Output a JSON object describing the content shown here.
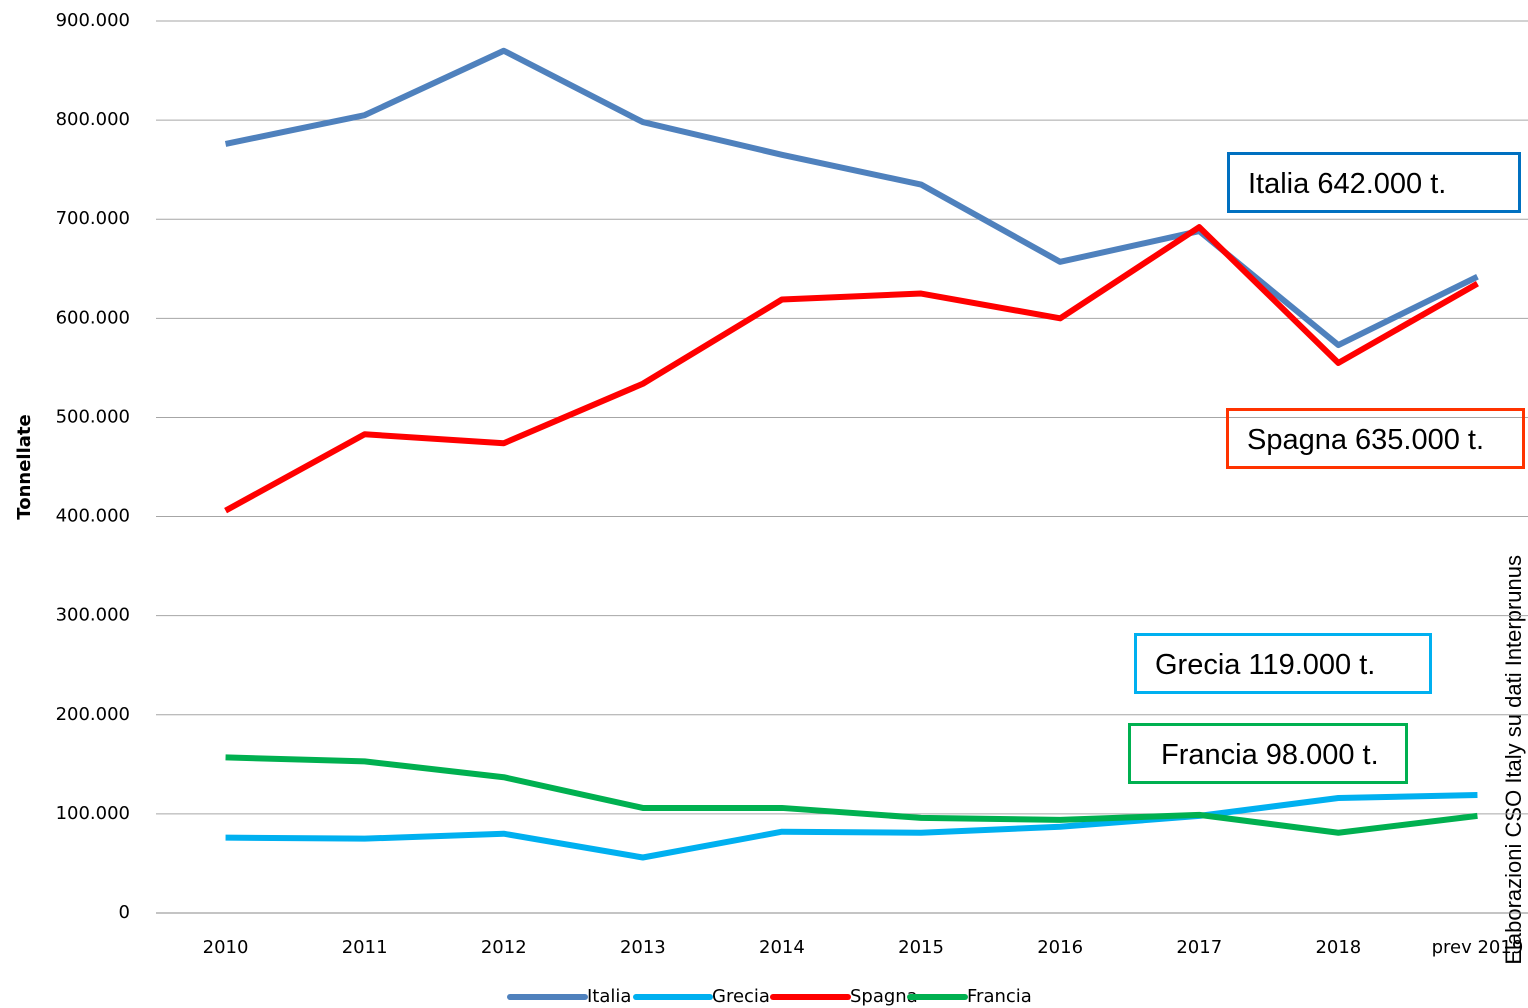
{
  "chart_data": {
    "type": "line",
    "y_label": "Tonnellate",
    "categories": [
      "2010",
      "2011",
      "2012",
      "2013",
      "2014",
      "2015",
      "2016",
      "2017",
      "2018",
      "prev 2019"
    ],
    "series": [
      {
        "name": "Italia",
        "color": "#4f81bd",
        "values": [
          776000,
          805000,
          870000,
          798000,
          765000,
          735000,
          657000,
          688000,
          573000,
          642000
        ]
      },
      {
        "name": "Grecia",
        "color": "#00b0f0",
        "values": [
          76000,
          75000,
          80000,
          56000,
          82000,
          81000,
          87000,
          98000,
          116000,
          119000
        ]
      },
      {
        "name": "Spagna",
        "color": "#ff0000",
        "values": [
          406000,
          483000,
          474000,
          534000,
          619000,
          625000,
          600000,
          692000,
          555000,
          635000
        ]
      },
      {
        "name": "Francia",
        "color": "#00b050",
        "values": [
          157000,
          153000,
          137000,
          106000,
          106000,
          96000,
          94000,
          99000,
          81000,
          98000
        ]
      }
    ],
    "ylim": [
      0,
      900000
    ],
    "yticks": [
      0,
      {
        "value": 100000,
        "label": "100.000"
      },
      {
        "value": 200000,
        "label": "200.000"
      },
      {
        "value": 300000,
        "label": "300.000"
      },
      {
        "value": 400000,
        "label": "400.000"
      },
      {
        "value": 500000,
        "label": "500.000"
      },
      {
        "value": 600000,
        "label": "600.000"
      },
      {
        "value": 700000,
        "label": "700.000"
      },
      {
        "value": 800000,
        "label": "800.000"
      },
      {
        "value": 900000,
        "label": "900.000"
      }
    ],
    "grid": true,
    "legend": "bottom",
    "annotations": [
      {
        "text": "Italia 642.000 t.",
        "color": "#0070c0"
      },
      {
        "text": "Spagna 635.000 t.",
        "color": "#ff3300"
      },
      {
        "text": "Grecia 119.000 t.",
        "color": "#00b0f0"
      },
      {
        "text": "Francia 98.000 t.",
        "color": "#00b050"
      }
    ],
    "source": "Elaborazioni CSO Italy su dati Interprunus"
  }
}
